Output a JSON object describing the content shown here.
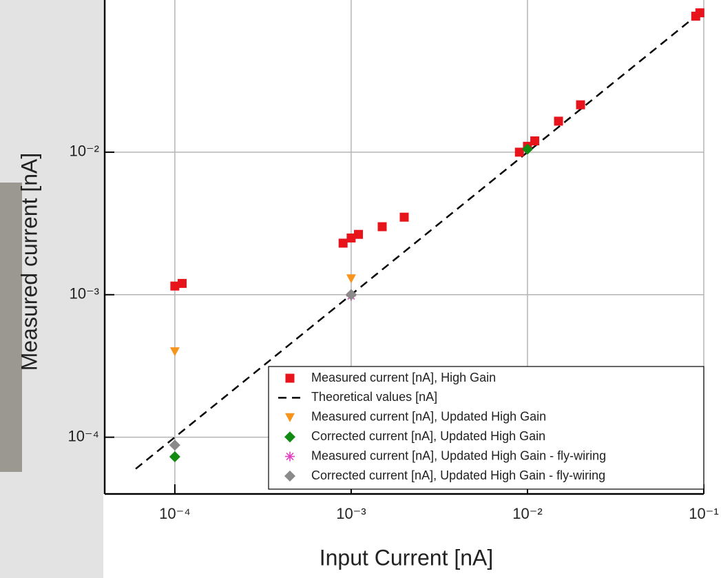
{
  "chart_data": {
    "type": "scatter",
    "x_label": "Input Current [nA]",
    "y_label": "Measured current [nA]",
    "log_x": true,
    "log_y": true,
    "grid": true,
    "legend": "lower right",
    "xlim": [
      4e-05,
      0.1
    ],
    "ylim": [
      4e-05,
      0.1
    ],
    "xticks": [
      {
        "value": 0.0001,
        "label": "10⁻⁴"
      },
      {
        "value": 0.001,
        "label": "10⁻³"
      },
      {
        "value": 0.01,
        "label": "10⁻²"
      },
      {
        "value": 0.1,
        "label": "10⁻¹"
      }
    ],
    "yticks": [
      {
        "value": 0.0001,
        "label": "10⁻⁴"
      },
      {
        "value": 0.001,
        "label": "10⁻³"
      },
      {
        "value": 0.01,
        "label": "10⁻²"
      }
    ],
    "series": [
      {
        "name": "Measured current [nA], High Gain",
        "color": "#e8141b",
        "marker": "square",
        "x": [
          0.0001,
          0.00011,
          0.0009,
          0.001,
          0.0011,
          0.0015,
          0.002,
          0.009,
          0.01,
          0.011,
          0.015,
          0.02,
          0.09,
          0.095
        ],
        "values": [
          0.00115,
          0.0012,
          0.0023,
          0.0025,
          0.00265,
          0.003,
          0.0035,
          0.01,
          0.011,
          0.012,
          0.0165,
          0.0215,
          0.09,
          0.095
        ]
      },
      {
        "name": "Theoretical values [nA]",
        "color": "#000000",
        "marker": "dashed-line",
        "x": [
          6e-05,
          0.1
        ],
        "values": [
          6e-05,
          0.1
        ]
      },
      {
        "name": "Measured current [nA], Updated High Gain",
        "color": "#f7941d",
        "marker": "triangle-down",
        "x": [
          0.0001,
          0.001
        ],
        "values": [
          0.0004,
          0.0013
        ]
      },
      {
        "name": "Corrected current [nA], Updated High Gain",
        "color": "#118a11",
        "marker": "diamond",
        "x": [
          0.0001,
          0.001,
          0.01
        ],
        "values": [
          7.3e-05,
          0.001,
          0.0105
        ]
      },
      {
        "name": "Measured current [nA], Updated High Gain - fly-wiring",
        "color": "#e040c0",
        "marker": "star",
        "x": [
          0.001
        ],
        "values": [
          0.00098
        ]
      },
      {
        "name": "Corrected current [nA], Updated High Gain - fly-wiring",
        "color": "#8a8a8a",
        "marker": "diamond",
        "x": [
          0.0001,
          0.001
        ],
        "values": [
          8.8e-05,
          0.001
        ]
      }
    ]
  }
}
